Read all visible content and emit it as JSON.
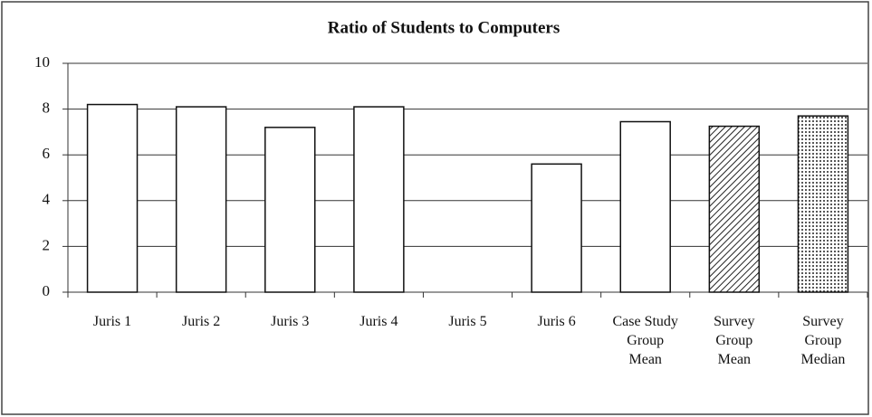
{
  "chart_data": {
    "type": "bar",
    "title": "Ratio of Students to Computers",
    "categories": [
      "Juris 1",
      "Juris 2",
      "Juris 3",
      "Juris 4",
      "Juris 5",
      "Juris 6",
      "Case Study Group Mean",
      "Survey Group Mean",
      "Survey Group Median"
    ],
    "values": [
      8.2,
      8.1,
      7.2,
      8.1,
      null,
      5.6,
      7.45,
      7.25,
      7.7
    ],
    "color": "#ffffff",
    "bar_fills": [
      "plain",
      "plain",
      "plain",
      "plain",
      "plain",
      "plain",
      "plain",
      "hatch",
      "dots"
    ],
    "ylim": [
      0,
      10
    ],
    "yticks": [
      0,
      2,
      4,
      6,
      8,
      10
    ],
    "grid": true
  }
}
